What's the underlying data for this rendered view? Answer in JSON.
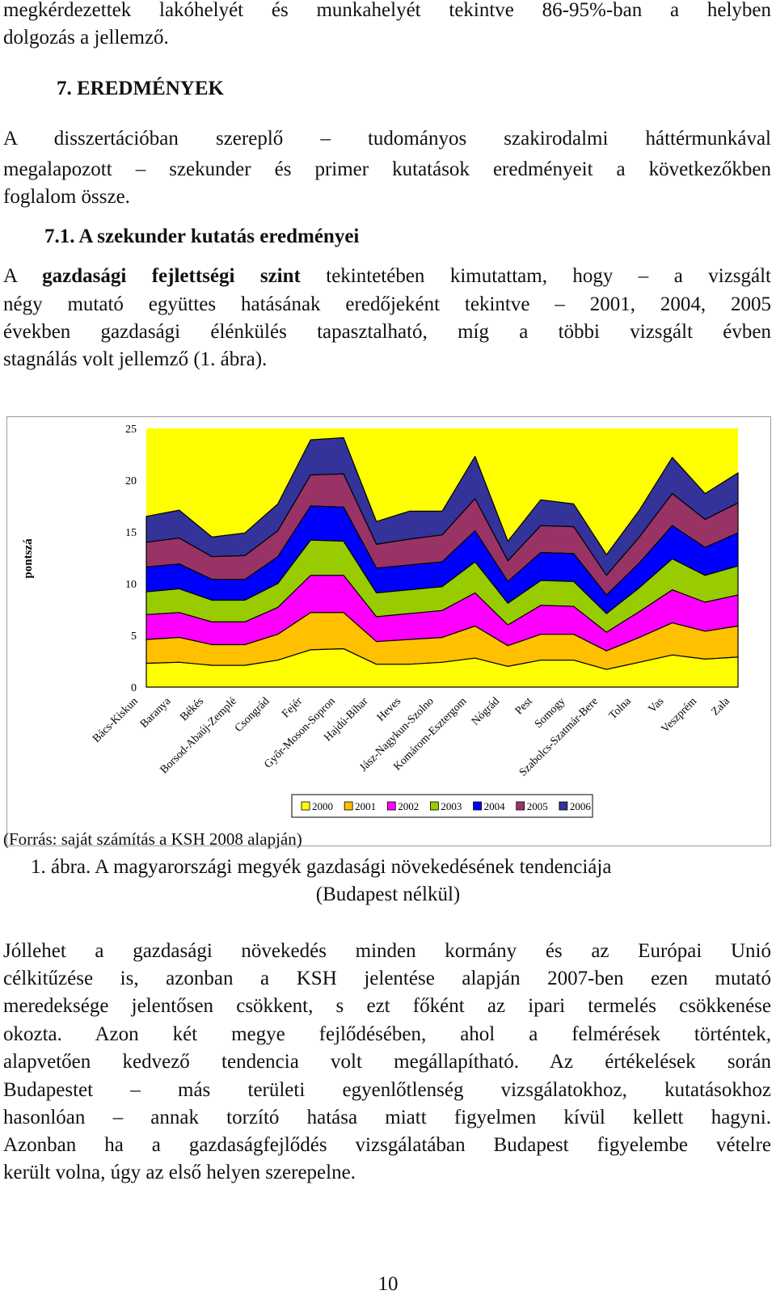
{
  "intro": {
    "line1": "megkérdezettek lakóhelyét és munkahelyét tekintve 86-95%-ban a helyben",
    "line2": "dolgozás a jellemző."
  },
  "section7": {
    "heading": "7. EREDMÉNYEK",
    "line1": "A disszertációban szereplő – tudományos szakirodalmi háttérmunkával",
    "line2": "megalapozott – szekunder és primer kutatások eredményeit a következőkben",
    "line3": "foglalom össze."
  },
  "section71": {
    "heading": "7.1. A szekunder kutatás eredményei",
    "p1_prefix": "A ",
    "p1_bold": "gazdasági fejlettségi szint",
    "p1_rest": " tekintetében kimutattam, hogy – a vizsgált",
    "line2": "négy mutató együttes hatásának eredőjeként tekintve – 2001, 2004, 2005",
    "line3": "években gazdasági élénkülés tapasztalható, míg a többi vizsgált évben",
    "line4": "stagnálás volt jellemző (1. ábra)."
  },
  "chart_data": {
    "type": "area",
    "stacked": true,
    "ylabel": "pontszá",
    "ylim": [
      0,
      25
    ],
    "yticks": [
      0,
      5,
      10,
      15,
      20,
      25
    ],
    "grid": false,
    "legend_position": "bottom",
    "plot_background": "#ffff00",
    "categories": [
      "Bács-Kiskun",
      "Baranya",
      "Békés",
      "Borsod-Abaúj-Zemplé",
      "Csongrád",
      "Fejér",
      "Győr-Moson-Sopron",
      "Hajdú-Bihar",
      "Heves",
      "Jász-Nagykun-Szolno",
      "Komárom-Esztergom",
      "Nógrád",
      "Pest",
      "Somogy",
      "Szabolcs-Szatmár-Bere",
      "Tolna",
      "Vas",
      "Veszprém",
      "Zala"
    ],
    "series": [
      {
        "name": "2000",
        "color": "#ffff00",
        "values": [
          2.3,
          2.4,
          2.1,
          2.1,
          2.6,
          3.6,
          3.7,
          2.2,
          2.2,
          2.4,
          2.8,
          2.0,
          2.6,
          2.6,
          1.7,
          2.4,
          3.1,
          2.7,
          2.9
        ]
      },
      {
        "name": "2001",
        "color": "#ffc000",
        "values": [
          2.3,
          2.4,
          2.0,
          2.0,
          2.5,
          3.6,
          3.5,
          2.2,
          2.4,
          2.4,
          3.1,
          2.0,
          2.5,
          2.5,
          1.8,
          2.4,
          3.1,
          2.7,
          3.0
        ]
      },
      {
        "name": "2002",
        "color": "#ff00ff",
        "values": [
          2.4,
          2.4,
          2.2,
          2.2,
          2.6,
          3.6,
          3.6,
          2.4,
          2.5,
          2.6,
          3.2,
          2.0,
          2.8,
          2.7,
          1.8,
          2.5,
          3.2,
          2.8,
          3.0
        ]
      },
      {
        "name": "2003",
        "color": "#99cc00",
        "values": [
          2.2,
          2.3,
          2.1,
          2.1,
          2.3,
          3.4,
          3.3,
          2.3,
          2.3,
          2.3,
          3.0,
          2.1,
          2.4,
          2.4,
          1.8,
          2.3,
          3.0,
          2.6,
          2.8
        ]
      },
      {
        "name": "2004",
        "color": "#0000ff",
        "values": [
          2.4,
          2.4,
          2.0,
          2.0,
          2.6,
          3.3,
          3.3,
          2.4,
          2.4,
          2.4,
          3.0,
          2.1,
          2.7,
          2.7,
          1.8,
          2.4,
          3.2,
          2.7,
          3.2
        ]
      },
      {
        "name": "2005",
        "color": "#993366",
        "values": [
          2.4,
          2.5,
          2.2,
          2.3,
          2.5,
          3.0,
          3.2,
          2.3,
          2.5,
          2.6,
          3.1,
          2.0,
          2.6,
          2.6,
          1.9,
          2.5,
          3.1,
          2.7,
          2.9
        ]
      },
      {
        "name": "2006",
        "color": "#333399",
        "values": [
          2.5,
          2.7,
          1.9,
          2.2,
          2.6,
          3.4,
          3.5,
          2.2,
          2.7,
          2.3,
          4.1,
          1.9,
          2.5,
          2.2,
          2.0,
          2.6,
          3.5,
          2.5,
          2.9
        ]
      }
    ]
  },
  "figure": {
    "source": "(Forrás: saját számítás a KSH 2008 alapján)",
    "title_line1": "1. ábra. A magyarországi megyék gazdasági növekedésének tendenciája",
    "title_line2": "(Budapest nélkül)"
  },
  "closing": {
    "line1": "Jóllehet a gazdasági növekedés minden kormány és az Európai Unió",
    "line2": "célkitűzése is, azonban a KSH jelentése alapján 2007-ben ezen mutató",
    "line3": "meredeksége jelentősen csökkent, s ezt főként az ipari termelés csökkenése",
    "line4": "okozta. Azon két megye fejlődésében, ahol a felmérések történtek,",
    "line5": "alapvetően kedvező tendencia volt megállapítható. Az értékelések során",
    "line6": "Budapestet – más területi egyenlőtlenség vizsgálatokhoz, kutatásokhoz",
    "line7": "hasonlóan – annak torzító hatása miatt figyelmen kívül kellett hagyni.",
    "line8": "Azonban ha a gazdaságfejlődés vizsgálatában Budapest figyelembe vételre",
    "line9": "került volna, úgy az első helyen szerepelne."
  },
  "page_number": "10"
}
